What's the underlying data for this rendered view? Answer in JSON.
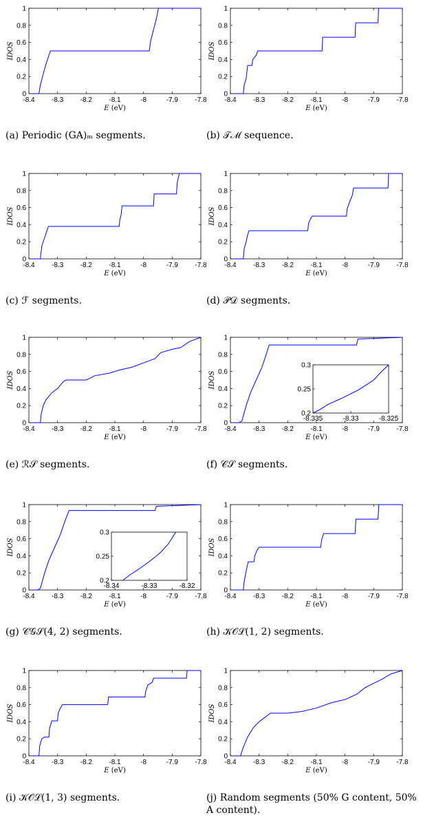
{
  "chart_data": [
    {
      "id": "a",
      "type": "line",
      "xlabel": "E (eV)",
      "ylabel": "IDOS",
      "xlim": [
        -8.4,
        -7.8
      ],
      "ylim": [
        0,
        1
      ],
      "xticks": [
        "-8.4",
        "-8.3",
        "-8.2",
        "-8.1",
        "-8",
        "-7.9",
        "-7.8"
      ],
      "yticks": [
        "0",
        "0.2",
        "0.4",
        "0.6",
        "0.8",
        "1"
      ],
      "caption": "(a) Periodic (GA)ₘ segments.",
      "series": [
        {
          "color": "#0000ff",
          "x": [
            -8.39,
            -8.365,
            -8.36,
            -8.35,
            -8.34,
            -8.33,
            -8.325,
            -7.98,
            -7.975,
            -7.965,
            -7.955,
            -7.948,
            -7.8
          ],
          "y": [
            0,
            0,
            0.1,
            0.23,
            0.35,
            0.45,
            0.5,
            0.5,
            0.62,
            0.75,
            0.88,
            1,
            1
          ]
        }
      ]
    },
    {
      "id": "b",
      "type": "line",
      "xlabel": "E (eV)",
      "ylabel": "IDOS",
      "xlim": [
        -8.4,
        -7.8
      ],
      "ylim": [
        0,
        1
      ],
      "xticks": [
        "-8.4",
        "-8.3",
        "-8.2",
        "-8.1",
        "-8",
        "-7.9",
        "-7.8"
      ],
      "yticks": [
        "0",
        "0.2",
        "0.4",
        "0.6",
        "0.8",
        "1"
      ],
      "caption": "(b) 𝒯ℳ sequence.",
      "series": [
        {
          "color": "#0000ff",
          "x": [
            -8.39,
            -8.355,
            -8.352,
            -8.345,
            -8.34,
            -8.325,
            -8.322,
            -8.31,
            -8.305,
            -8.08,
            -8.078,
            -7.965,
            -7.963,
            -7.885,
            -7.883,
            -7.8
          ],
          "y": [
            0,
            0,
            0.1,
            0.18,
            0.33,
            0.33,
            0.4,
            0.45,
            0.5,
            0.5,
            0.66,
            0.66,
            0.83,
            0.83,
            1,
            1
          ]
        }
      ]
    },
    {
      "id": "c",
      "type": "line",
      "xlabel": "E (eV)",
      "ylabel": "IDOS",
      "xlim": [
        -8.4,
        -7.8
      ],
      "ylim": [
        0,
        1
      ],
      "xticks": [
        "-8.4",
        "-8.3",
        "-8.2",
        "-8.1",
        "-8",
        "-7.9",
        "-7.8"
      ],
      "yticks": [
        "0",
        "0.2",
        "0.4",
        "0.6",
        "0.8",
        "1"
      ],
      "caption": "(c) ℱ segments.",
      "series": [
        {
          "color": "#0000ff",
          "x": [
            -8.39,
            -8.36,
            -8.355,
            -8.345,
            -8.338,
            -8.332,
            -8.085,
            -8.083,
            -8.078,
            -8.075,
            -7.965,
            -7.963,
            -7.885,
            -7.882,
            -7.875,
            -7.8
          ],
          "y": [
            0,
            0,
            0.15,
            0.25,
            0.32,
            0.38,
            0.38,
            0.45,
            0.52,
            0.62,
            0.62,
            0.76,
            0.76,
            0.9,
            1,
            1
          ]
        }
      ]
    },
    {
      "id": "d",
      "type": "line",
      "xlabel": "E (eV)",
      "ylabel": "IDOS",
      "xlim": [
        -8.4,
        -7.8
      ],
      "ylim": [
        0,
        1
      ],
      "xticks": [
        "-8.4",
        "-8.3",
        "-8.2",
        "-8.1",
        "-8",
        "-7.9",
        "-7.8"
      ],
      "yticks": [
        "0",
        "0.2",
        "0.4",
        "0.6",
        "0.8",
        "1"
      ],
      "caption": "(d) 𝒫𝒟 segments.",
      "series": [
        {
          "color": "#0000ff",
          "x": [
            -8.39,
            -8.355,
            -8.352,
            -8.345,
            -8.34,
            -8.335,
            -8.13,
            -8.127,
            -8.12,
            -8.115,
            -7.995,
            -7.993,
            -7.985,
            -7.975,
            -7.97,
            -7.85,
            -7.848,
            -7.8
          ],
          "y": [
            0,
            0,
            0.12,
            0.2,
            0.28,
            0.33,
            0.33,
            0.42,
            0.47,
            0.5,
            0.5,
            0.58,
            0.66,
            0.74,
            0.83,
            0.83,
            1,
            1
          ]
        }
      ]
    },
    {
      "id": "e",
      "type": "line",
      "xlabel": "E (eV)",
      "ylabel": "IDOS",
      "xlim": [
        -8.4,
        -7.8
      ],
      "ylim": [
        0,
        1
      ],
      "xticks": [
        "-8.4",
        "-8.3",
        "-8.2",
        "-8.1",
        "-8",
        "-7.9",
        "-7.8"
      ],
      "yticks": [
        "0",
        "0.2",
        "0.4",
        "0.6",
        "0.8",
        "1"
      ],
      "caption": "(e) ℛ𝒮 segments.",
      "series": [
        {
          "color": "#0000ff",
          "x": [
            -8.39,
            -8.36,
            -8.357,
            -8.35,
            -8.34,
            -8.32,
            -8.3,
            -8.28,
            -8.27,
            -8.2,
            -8.17,
            -8.12,
            -8.08,
            -8.04,
            -8.0,
            -7.96,
            -7.94,
            -7.9,
            -7.87,
            -7.84,
            -7.8
          ],
          "y": [
            0,
            0,
            0.1,
            0.2,
            0.27,
            0.35,
            0.4,
            0.48,
            0.5,
            0.5,
            0.55,
            0.58,
            0.62,
            0.65,
            0.7,
            0.75,
            0.82,
            0.86,
            0.88,
            0.95,
            1
          ]
        }
      ]
    },
    {
      "id": "f",
      "type": "line",
      "xlabel": "E (eV)",
      "ylabel": "IDOS",
      "xlim": [
        -8.4,
        -7.8
      ],
      "ylim": [
        0,
        1
      ],
      "xticks": [
        "-8.4",
        "-8.3",
        "-8.2",
        "-8.1",
        "-8",
        "-7.9",
        "-7.8"
      ],
      "yticks": [
        "0",
        "0.2",
        "0.4",
        "0.6",
        "0.8",
        "1"
      ],
      "caption": "(f) 𝒞𝒮 segments.",
      "series": [
        {
          "color": "#0000ff",
          "x": [
            -8.39,
            -8.37,
            -8.36,
            -8.345,
            -8.33,
            -8.31,
            -8.29,
            -8.275,
            -8.265,
            -7.96,
            -7.955,
            -7.8
          ],
          "y": [
            0,
            0,
            0.02,
            0.2,
            0.35,
            0.5,
            0.65,
            0.8,
            0.91,
            0.91,
            0.98,
            1
          ]
        }
      ],
      "inset": {
        "xlim": [
          -8.335,
          -8.325
        ],
        "ylim": [
          0.2,
          0.3
        ],
        "xticks": [
          "-8.335",
          "-8.33",
          "-8.325"
        ],
        "yticks": [
          "0.2",
          "0.25",
          "0.3"
        ],
        "x": [
          -8.335,
          -8.334,
          -8.333,
          -8.332,
          -8.331,
          -8.33,
          -8.329,
          -8.328,
          -8.327,
          -8.326,
          -8.325
        ],
        "y": [
          0.2,
          0.208,
          0.218,
          0.225,
          0.232,
          0.24,
          0.248,
          0.258,
          0.268,
          0.285,
          0.3
        ]
      }
    },
    {
      "id": "g",
      "type": "line",
      "xlabel": "E (eV)",
      "ylabel": "IDOS",
      "xlim": [
        -8.4,
        -7.8
      ],
      "ylim": [
        0,
        1
      ],
      "xticks": [
        "-8.4",
        "-8.3",
        "-8.2",
        "-8.1",
        "-8",
        "-7.9",
        "-7.8"
      ],
      "yticks": [
        "0",
        "0.2",
        "0.4",
        "0.6",
        "0.8",
        "1"
      ],
      "caption": "(g) 𝒞𝒢𝒮(4, 2) segments.",
      "series": [
        {
          "color": "#0000ff",
          "x": [
            -8.39,
            -8.37,
            -8.36,
            -8.345,
            -8.33,
            -8.31,
            -8.29,
            -8.275,
            -8.26,
            -7.96,
            -7.955,
            -7.8
          ],
          "y": [
            0,
            0,
            0.02,
            0.2,
            0.35,
            0.5,
            0.65,
            0.8,
            0.93,
            0.93,
            0.98,
            1
          ]
        }
      ],
      "inset": {
        "xlim": [
          -8.34,
          -8.32
        ],
        "ylim": [
          0.2,
          0.3
        ],
        "xticks": [
          "-8.34",
          "-8.33",
          "-8.32"
        ],
        "yticks": [
          "0.2",
          "0.25",
          "0.3"
        ],
        "x": [
          -8.337,
          -8.335,
          -8.333,
          -8.331,
          -8.329,
          -8.327,
          -8.325,
          -8.323
        ],
        "y": [
          0.2,
          0.212,
          0.222,
          0.233,
          0.245,
          0.258,
          0.275,
          0.3
        ]
      }
    },
    {
      "id": "h",
      "type": "line",
      "xlabel": "E (eV)",
      "ylabel": "IDOS",
      "xlim": [
        -8.4,
        -7.8
      ],
      "ylim": [
        0,
        1
      ],
      "xticks": [
        "-8.4",
        "-8.3",
        "-8.2",
        "-8.1",
        "-8",
        "-7.9",
        "-7.8"
      ],
      "yticks": [
        "0",
        "0.2",
        "0.4",
        "0.6",
        "0.8",
        "1"
      ],
      "caption": "(h) 𝒦𝒪ℒ(1, 2) segments.",
      "series": [
        {
          "color": "#0000ff",
          "x": [
            -8.39,
            -8.355,
            -8.352,
            -8.345,
            -8.338,
            -8.318,
            -8.315,
            -8.308,
            -8.3,
            -8.085,
            -8.082,
            -8.075,
            -7.965,
            -7.962,
            -7.885,
            -7.882,
            -7.8
          ],
          "y": [
            0,
            0,
            0.1,
            0.22,
            0.33,
            0.33,
            0.4,
            0.46,
            0.5,
            0.5,
            0.58,
            0.66,
            0.66,
            0.83,
            0.83,
            1,
            1
          ]
        }
      ]
    },
    {
      "id": "i",
      "type": "line",
      "xlabel": "E (eV)",
      "ylabel": "IDOS",
      "xlim": [
        -8.4,
        -7.8
      ],
      "ylim": [
        0,
        1
      ],
      "xticks": [
        "-8.4",
        "-8.3",
        "-8.2",
        "-8.1",
        "-8",
        "-7.9",
        "-7.8"
      ],
      "yticks": [
        "0",
        "0.2",
        "0.4",
        "0.6",
        "0.8",
        "1"
      ],
      "caption": "(i) 𝒦𝒪ℒ(1, 3) segments.",
      "series": [
        {
          "color": "#0000ff",
          "x": [
            -8.39,
            -8.365,
            -8.362,
            -8.355,
            -8.345,
            -8.33,
            -8.328,
            -8.32,
            -8.305,
            -8.3,
            -8.298,
            -8.29,
            -8.283,
            -8.125,
            -8.122,
            -7.995,
            -7.992,
            -7.985,
            -7.97,
            -7.965,
            -7.85,
            -7.848,
            -7.8
          ],
          "y": [
            0,
            0,
            0.12,
            0.2,
            0.22,
            0.22,
            0.32,
            0.41,
            0.41,
            0.41,
            0.5,
            0.56,
            0.6,
            0.6,
            0.69,
            0.69,
            0.76,
            0.83,
            0.86,
            0.91,
            0.91,
            1,
            1
          ]
        }
      ]
    },
    {
      "id": "j",
      "type": "line",
      "xlabel": "E (eV)",
      "ylabel": "IDOS",
      "xlim": [
        -8.4,
        -7.8
      ],
      "ylim": [
        0,
        1
      ],
      "xticks": [
        "-8.4",
        "-8.3",
        "-8.2",
        "-8.1",
        "-8",
        "-7.9",
        "-7.8"
      ],
      "yticks": [
        "0",
        "0.2",
        "0.4",
        "0.6",
        "0.8",
        "1"
      ],
      "caption": "(j) Random segments (50% G content, 50% A content).",
      "series": [
        {
          "color": "#0000ff",
          "x": [
            -8.39,
            -8.365,
            -8.355,
            -8.34,
            -8.32,
            -8.3,
            -8.28,
            -8.26,
            -8.2,
            -8.15,
            -8.1,
            -8.05,
            -8.0,
            -7.96,
            -7.93,
            -7.9,
            -7.87,
            -7.84,
            -7.8
          ],
          "y": [
            0,
            0,
            0.1,
            0.22,
            0.33,
            0.4,
            0.45,
            0.5,
            0.5,
            0.52,
            0.56,
            0.62,
            0.66,
            0.72,
            0.8,
            0.85,
            0.9,
            0.96,
            1
          ]
        }
      ]
    }
  ]
}
